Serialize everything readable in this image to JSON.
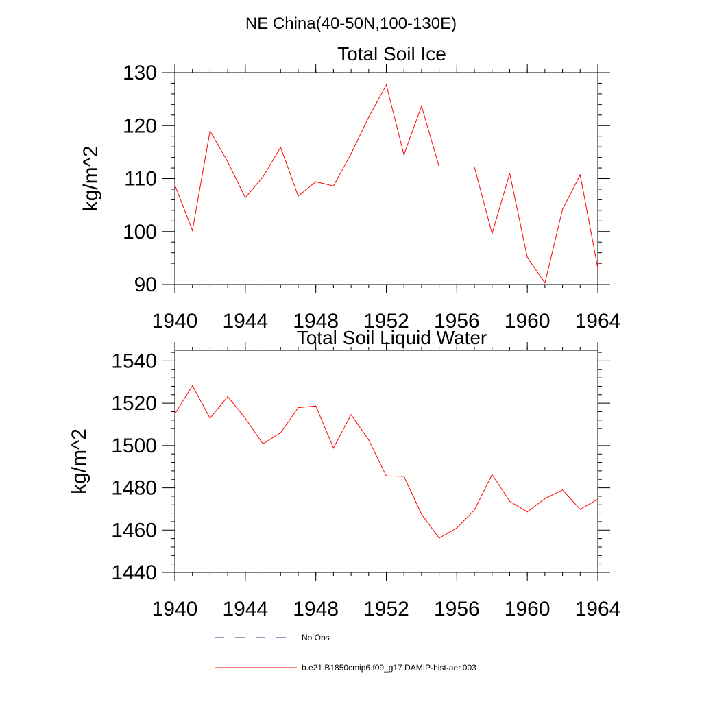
{
  "page_title": "NE China(40-50N,100-130E)",
  "colors": {
    "series": "#ff0000",
    "obs": "#1f3a93",
    "axis": "#000000"
  },
  "legend": {
    "obs_label": "No Obs",
    "model_label": "b.e21.B1850cmip6.f09_g17.DAMIP-hist-aer.003"
  },
  "chart_data": [
    {
      "type": "line",
      "title": "Total Soil Ice",
      "xlabel": "",
      "ylabel": "kg/m^2",
      "xlim": [
        1940,
        1964
      ],
      "ylim": [
        90,
        130
      ],
      "xticks": [
        1940,
        1944,
        1948,
        1952,
        1956,
        1960,
        1964
      ],
      "yticks": [
        90,
        100,
        110,
        120,
        130
      ],
      "x_tick_labels": [
        "1940",
        "1944",
        "1948",
        "1952",
        "1956",
        "1960",
        "1964"
      ],
      "y_tick_labels": [
        "90",
        "100",
        "110",
        "120",
        "130"
      ],
      "grid": false,
      "series": [
        {
          "name": "b.e21.B1850cmip6.f09_g17.DAMIP-hist-aer.003",
          "x": [
            1940,
            1941,
            1942,
            1943,
            1944,
            1945,
            1946,
            1947,
            1948,
            1949,
            1950,
            1951,
            1952,
            1953,
            1954,
            1955,
            1956,
            1957,
            1958,
            1959,
            1960,
            1961,
            1962,
            1963,
            1964
          ],
          "values": [
            108.8,
            100.2,
            119.0,
            113.2,
            106.4,
            110.3,
            115.9,
            106.7,
            109.4,
            108.6,
            114.7,
            121.6,
            127.7,
            114.5,
            123.7,
            112.2,
            112.2,
            112.2,
            99.6,
            111.0,
            95.1,
            90.3,
            104.2,
            110.7,
            93.1
          ]
        }
      ]
    },
    {
      "type": "line",
      "title": "Total Soil Liquid Water",
      "xlabel": "",
      "ylabel": "kg/m^2",
      "xlim": [
        1940,
        1964
      ],
      "ylim": [
        1440,
        1545
      ],
      "xticks": [
        1940,
        1944,
        1948,
        1952,
        1956,
        1960,
        1964
      ],
      "yticks": [
        1440,
        1460,
        1480,
        1500,
        1520,
        1540
      ],
      "x_tick_labels": [
        "1940",
        "1944",
        "1948",
        "1952",
        "1956",
        "1960",
        "1964"
      ],
      "y_tick_labels": [
        "1440",
        "1460",
        "1480",
        "1500",
        "1520",
        "1540"
      ],
      "grid": false,
      "series": [
        {
          "name": "b.e21.B1850cmip6.f09_g17.DAMIP-hist-aer.003",
          "x": [
            1940,
            1941,
            1942,
            1943,
            1944,
            1945,
            1946,
            1947,
            1948,
            1949,
            1950,
            1951,
            1952,
            1953,
            1954,
            1955,
            1956,
            1957,
            1958,
            1959,
            1960,
            1961,
            1962,
            1963,
            1964
          ],
          "values": [
            1514.9,
            1528.3,
            1512.9,
            1523.1,
            1512.9,
            1500.8,
            1506.0,
            1517.9,
            1518.7,
            1498.8,
            1514.6,
            1502.6,
            1485.6,
            1485.4,
            1467.5,
            1456.2,
            1461.0,
            1469.5,
            1486.3,
            1473.6,
            1468.6,
            1474.9,
            1479.0,
            1469.8,
            1474.6
          ]
        }
      ]
    }
  ]
}
